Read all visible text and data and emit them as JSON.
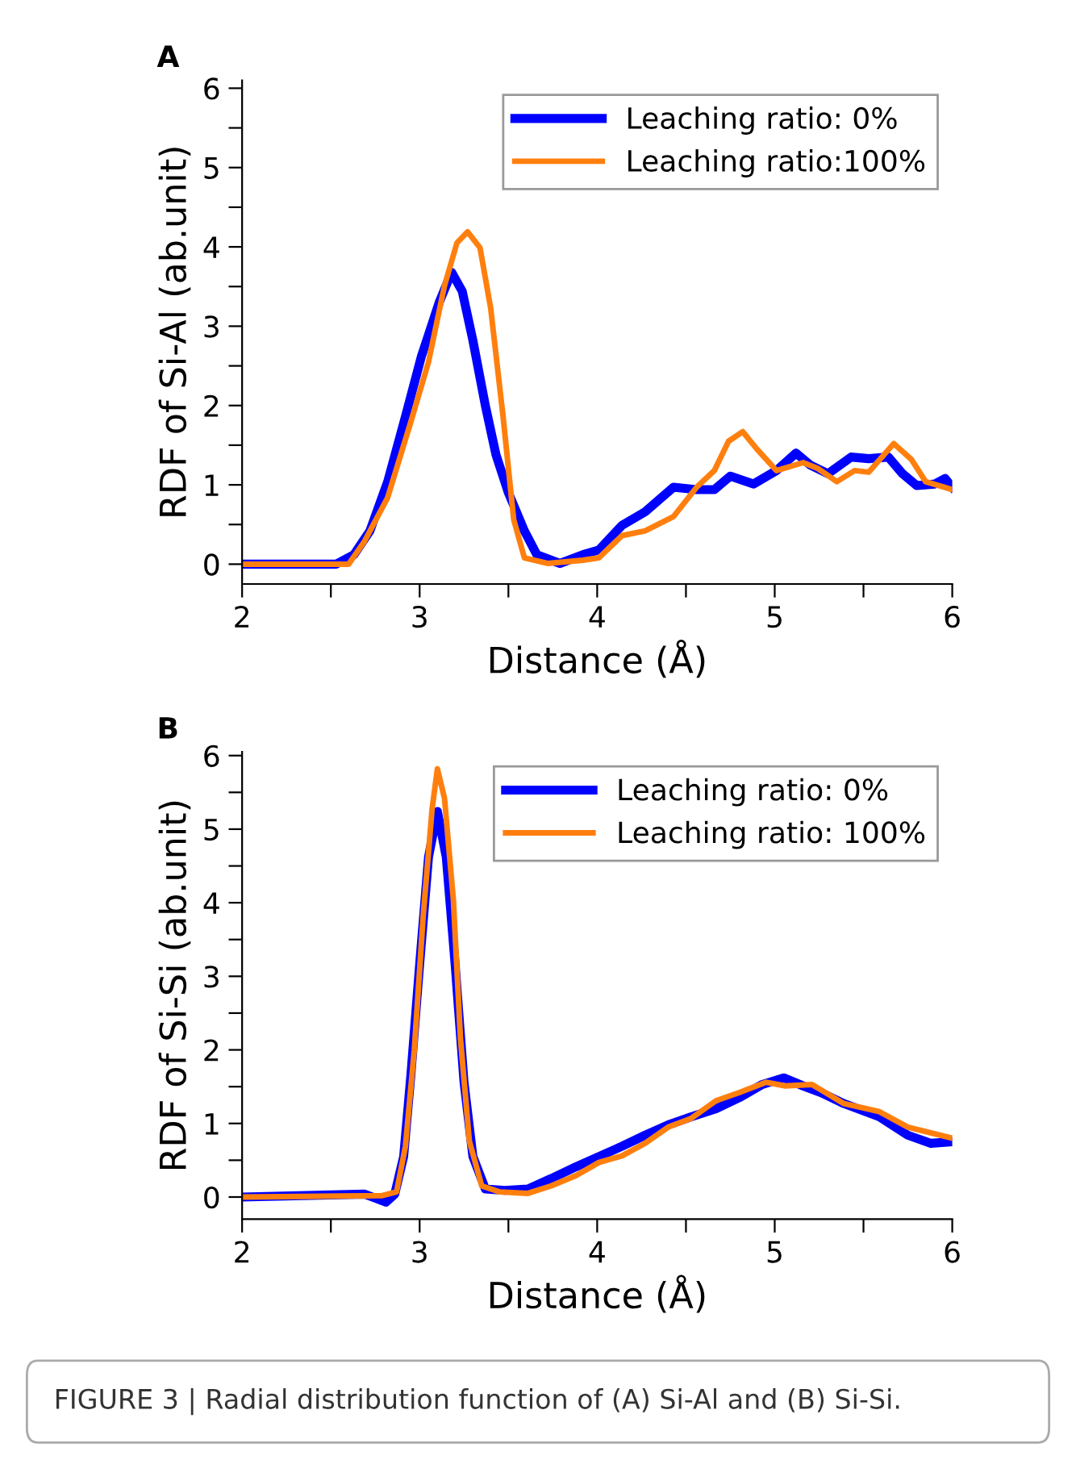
{
  "chart_data": [
    {
      "type": "line",
      "title": "A",
      "xlabel": "Distance (Å)",
      "ylabel": "RDF of Si-Al (ab.unit)",
      "legend": "top right",
      "grid": false,
      "marker": "none",
      "line_style": "solid",
      "xlim": [
        2,
        6
      ],
      "xticks": [
        2,
        {
          "value": 2.5,
          "label": null
        },
        3,
        {
          "value": 3.5,
          "label": null
        },
        4,
        {
          "value": 4.5,
          "label": null
        },
        5,
        {
          "value": 5.5,
          "label": null
        },
        6
      ],
      "ylim": [
        -0.25,
        6.1
      ],
      "yticks": [
        0,
        {
          "value": 0.5,
          "label": null
        },
        1,
        {
          "value": 1.5,
          "label": null
        },
        2,
        {
          "value": 2.5,
          "label": null
        },
        3,
        {
          "value": 3.5,
          "label": null
        },
        4,
        {
          "value": 4.5,
          "label": null
        },
        5,
        {
          "value": 5.5,
          "label": null
        },
        6
      ],
      "series": [
        {
          "name": "Leaching ratio: 0%",
          "color": "#0000ff",
          "x": [
            2,
            2.53,
            2.63,
            2.72,
            2.82,
            2.92,
            3.01,
            3.11,
            3.18,
            3.24,
            3.3,
            3.37,
            3.43,
            3.5,
            3.59,
            3.66,
            3.79,
            3.92,
            4.01,
            4.14,
            4.27,
            4.43,
            4.56,
            4.66,
            4.75,
            4.88,
            5.01,
            5.12,
            5.2,
            5.3,
            5.43,
            5.53,
            5.64,
            5.72,
            5.8,
            5.9,
            5.96,
            6
          ],
          "values": [
            0,
            0,
            0.12,
            0.42,
            1.04,
            1.86,
            2.62,
            3.3,
            3.68,
            3.44,
            2.82,
            2.0,
            1.38,
            0.9,
            0.42,
            0.12,
            0.01,
            0.12,
            0.18,
            0.49,
            0.66,
            0.97,
            0.94,
            0.94,
            1.11,
            1.01,
            1.18,
            1.4,
            1.25,
            1.14,
            1.35,
            1.33,
            1.35,
            1.14,
            0.99,
            1.01,
            1.08,
            0.97
          ]
        },
        {
          "name": "Leaching ratio:100%",
          "color": "#ff7f0e",
          "x": [
            2,
            2.6,
            2.69,
            2.82,
            2.95,
            3.05,
            3.14,
            3.21,
            3.27,
            3.34,
            3.4,
            3.47,
            3.53,
            3.59,
            3.72,
            3.92,
            4.01,
            4.14,
            4.27,
            4.43,
            4.56,
            4.66,
            4.74,
            4.82,
            4.9,
            5.01,
            5.16,
            5.24,
            5.35,
            5.45,
            5.53,
            5.67,
            5.77,
            5.85,
            6
          ],
          "values": [
            0,
            0,
            0.29,
            0.84,
            1.79,
            2.55,
            3.51,
            4.05,
            4.19,
            3.99,
            3.23,
            1.86,
            0.56,
            0.08,
            0.01,
            0.05,
            0.08,
            0.36,
            0.42,
            0.6,
            0.97,
            1.18,
            1.55,
            1.67,
            1.45,
            1.18,
            1.28,
            1.21,
            1.04,
            1.18,
            1.16,
            1.52,
            1.32,
            1.04,
            0.94
          ]
        }
      ]
    },
    {
      "type": "line",
      "title": "B",
      "xlabel": "Distance (Å)",
      "ylabel": "RDF of Si-Si (ab.unit)",
      "legend": "top right",
      "grid": false,
      "marker": "none",
      "line_style": "solid",
      "xlim": [
        2,
        6
      ],
      "xticks": [
        2,
        {
          "value": 2.5,
          "label": null
        },
        3,
        {
          "value": 3.5,
          "label": null
        },
        4,
        {
          "value": 4.5,
          "label": null
        },
        5,
        {
          "value": 5.5,
          "label": null
        },
        6
      ],
      "ylim": [
        -0.3,
        6.05
      ],
      "yticks": [
        0,
        {
          "value": 0.5,
          "label": null
        },
        1,
        {
          "value": 1.5,
          "label": null
        },
        2,
        {
          "value": 2.5,
          "label": null
        },
        3,
        {
          "value": 3.5,
          "label": null
        },
        4,
        {
          "value": 4.5,
          "label": null
        },
        5,
        {
          "value": 5.5,
          "label": null
        },
        6
      ],
      "annotations": [
        "FIGURE 3 | Radial distribution function of (A) Si-Al and (B) Si-Si."
      ],
      "series": [
        {
          "name": "Leaching ratio: 0%",
          "color": "#0000ff",
          "x": [
            2,
            2.69,
            2.81,
            2.86,
            2.91,
            2.95,
            3.0,
            3.05,
            3.1,
            3.15,
            3.2,
            3.25,
            3.3,
            3.37,
            3.48,
            3.61,
            3.74,
            3.88,
            4.01,
            4.14,
            4.27,
            4.4,
            4.53,
            4.67,
            4.8,
            4.93,
            5.05,
            5.16,
            5.26,
            5.39,
            5.59,
            5.75,
            5.88,
            6
          ],
          "values": [
            0,
            0.04,
            -0.07,
            0.04,
            0.55,
            1.64,
            3.16,
            4.62,
            5.24,
            4.62,
            3.16,
            1.56,
            0.55,
            0.11,
            0.09,
            0.11,
            0.25,
            0.41,
            0.55,
            0.69,
            0.84,
            0.98,
            1.09,
            1.2,
            1.35,
            1.53,
            1.62,
            1.51,
            1.42,
            1.27,
            1.09,
            0.84,
            0.73,
            0.75
          ]
        },
        {
          "name": "Leaching ratio: 100%",
          "color": "#ff7f0e",
          "x": [
            2,
            2.79,
            2.87,
            2.92,
            2.97,
            3.02,
            3.07,
            3.1,
            3.14,
            3.19,
            3.23,
            3.28,
            3.35,
            3.45,
            3.61,
            3.74,
            3.88,
            4.01,
            4.14,
            4.27,
            4.4,
            4.53,
            4.67,
            4.8,
            4.95,
            5.06,
            5.21,
            5.39,
            5.59,
            5.75,
            6
          ],
          "values": [
            0,
            0.02,
            0.07,
            0.69,
            2.0,
            3.82,
            5.27,
            5.82,
            5.42,
            4.04,
            2.15,
            0.76,
            0.15,
            0.07,
            0.05,
            0.15,
            0.29,
            0.47,
            0.56,
            0.73,
            0.95,
            1.07,
            1.31,
            1.42,
            1.56,
            1.51,
            1.53,
            1.27,
            1.16,
            0.95,
            0.8
          ]
        }
      ]
    }
  ]
}
